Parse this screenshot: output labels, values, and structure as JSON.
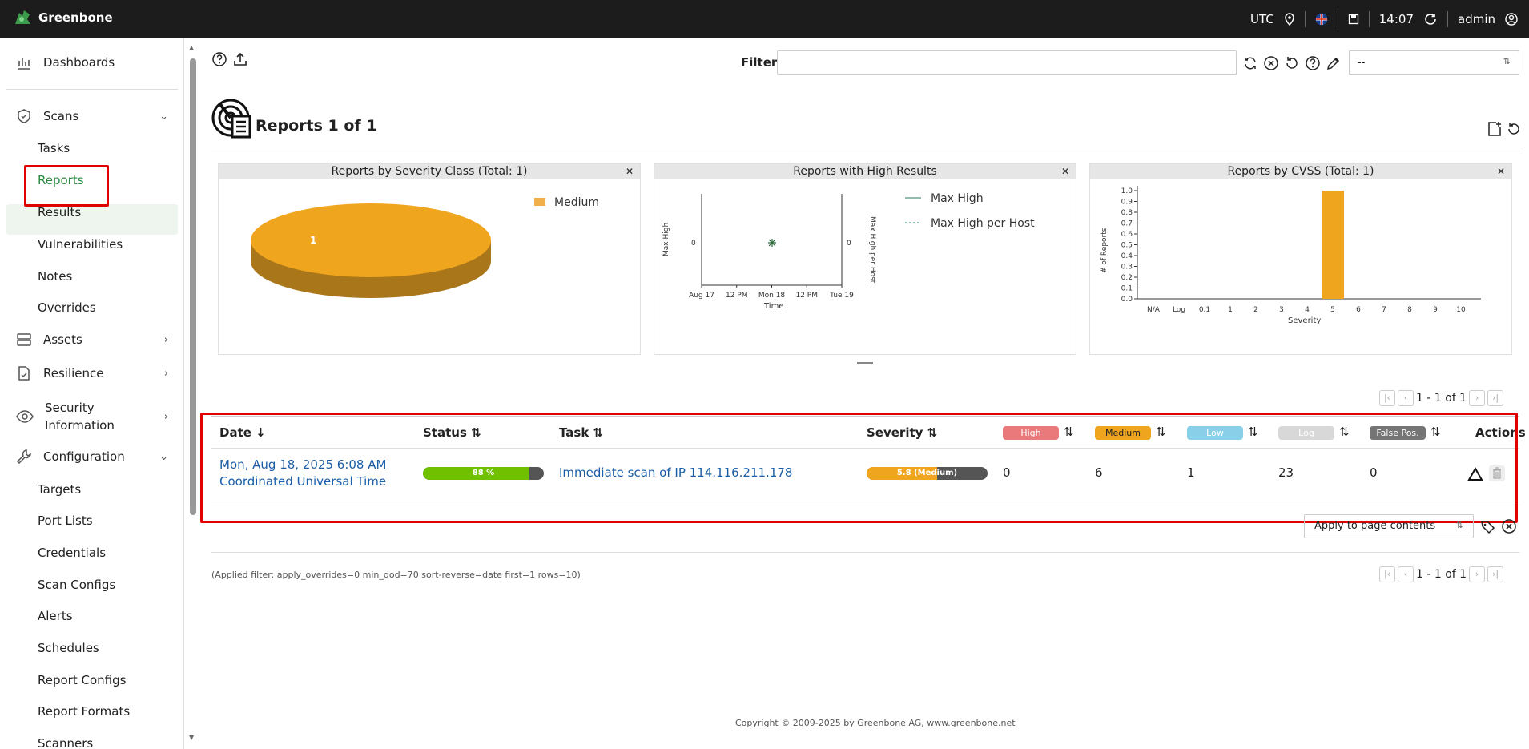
{
  "app": {
    "name": "Greenbone"
  },
  "topbar": {
    "timezone": "UTC",
    "time": "14:07",
    "user": "admin"
  },
  "sidebar": {
    "dashboards": "Dashboards",
    "scans": "Scans",
    "scans_items": [
      "Tasks",
      "Reports",
      "Results",
      "Vulnerabilities",
      "Notes",
      "Overrides"
    ],
    "assets": "Assets",
    "resilience": "Resilience",
    "security_information": [
      "Security",
      "Information"
    ],
    "configuration": "Configuration",
    "configuration_items": [
      "Targets",
      "Port Lists",
      "Credentials",
      "Scan Configs",
      "Alerts",
      "Schedules",
      "Report Configs",
      "Report Formats",
      "Scanners"
    ]
  },
  "toolbar": {
    "filter_label": "Filter",
    "filter_value": "",
    "filter_select": "--"
  },
  "page": {
    "title": "Reports 1 of 1"
  },
  "charts": {
    "severity_class": {
      "title": "Reports by Severity Class (Total: 1)",
      "legend": [
        "Medium"
      ],
      "slice_label": "1"
    },
    "high_results": {
      "title": "Reports with High Results",
      "legend": [
        "Max High",
        "Max High per Host"
      ],
      "ylabel_left": "Max High",
      "ylabel_right": "Max High per Host",
      "xlabel": "Time",
      "xticks": [
        "Aug 17",
        "12 PM",
        "Mon 18",
        "12 PM",
        "Tue 19"
      ],
      "ytick": "0"
    },
    "cvss": {
      "title": "Reports by CVSS (Total: 1)",
      "ylabel": "# of Reports",
      "xlabel": "Severity",
      "yticks": [
        "1.0",
        "0.9",
        "0.8",
        "0.7",
        "0.6",
        "0.5",
        "0.4",
        "0.3",
        "0.2",
        "0.1",
        "0.0"
      ],
      "xticks": [
        "N/A",
        "Log",
        "0.1",
        "1",
        "2",
        "3",
        "4",
        "5",
        "6",
        "7",
        "8",
        "9",
        "10"
      ]
    }
  },
  "chart_data": [
    {
      "type": "pie",
      "title": "Reports by Severity Class (Total: 1)",
      "categories": [
        "Medium"
      ],
      "values": [
        1
      ]
    },
    {
      "type": "scatter",
      "title": "Reports with High Results",
      "xlabel": "Time",
      "ylabel": "Max High",
      "series": [
        {
          "name": "Max High",
          "x": [
            "Mon 18"
          ],
          "values": [
            0
          ]
        },
        {
          "name": "Max High per Host",
          "x": [
            "Mon 18"
          ],
          "values": [
            0
          ]
        }
      ]
    },
    {
      "type": "bar",
      "title": "Reports by CVSS (Total: 1)",
      "xlabel": "Severity",
      "ylabel": "# of Reports",
      "categories": [
        "N/A",
        "Log",
        "0.1",
        "1",
        "2",
        "3",
        "4",
        "5",
        "6",
        "7",
        "8",
        "9",
        "10"
      ],
      "values": [
        0,
        0,
        0,
        0,
        0,
        0,
        0,
        1,
        0,
        0,
        0,
        0,
        0
      ],
      "ylim": [
        0,
        1.0
      ]
    }
  ],
  "pagination": {
    "text": "1 - 1 of 1"
  },
  "table": {
    "headers": {
      "date": "Date",
      "status": "Status",
      "task": "Task",
      "severity": "Severity",
      "high": "High",
      "medium": "Medium",
      "low": "Low",
      "log": "Log",
      "false_pos": "False Pos.",
      "actions": "Actions"
    },
    "row": {
      "date_line1": "Mon, Aug 18, 2025 6:08 AM",
      "date_line2": "Coordinated Universal Time",
      "status_text": "88 %",
      "status_progress": 88,
      "task": "Immediate scan of IP 114.116.211.178",
      "severity_text": "5.8 (Medium)",
      "severity_score": 5.8,
      "high": "0",
      "medium": "6",
      "low": "1",
      "log": "23",
      "false_pos": "0"
    }
  },
  "bulk": {
    "select": "Apply to page contents"
  },
  "applied_filter": "(Applied filter: apply_overrides=0 min_qod=70 sort-reverse=date first=1 rows=10)",
  "footer": {
    "copyright": "Copyright © 2009-2025 by Greenbone AG, www.greenbone.net"
  },
  "colors": {
    "high": "#e9797b",
    "medium": "#f0a51e",
    "low": "#89cfe8",
    "log": "#d8d8d8",
    "false_pos": "#757575",
    "accent": "#2a8a3e",
    "status": "#70c000"
  }
}
